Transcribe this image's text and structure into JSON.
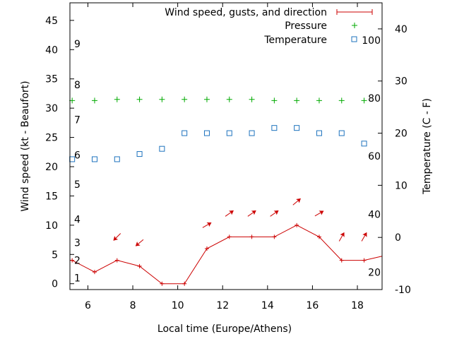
{
  "chart_data": {
    "type": "line",
    "xlabel": "Local time (Europe/Athens)",
    "ylabel_left": "Wind speed (kt - Beaufort)",
    "ylabel_right": "Temperature (C - F)",
    "xlim": [
      5.2,
      19.1
    ],
    "ylim_left": [
      -1,
      48
    ],
    "ylim_right": [
      -10,
      45
    ],
    "x_ticks": [
      6,
      8,
      10,
      12,
      14,
      16,
      18
    ],
    "y_left_ticks": [
      0,
      5,
      10,
      15,
      20,
      25,
      30,
      35,
      40,
      45
    ],
    "y_right_ticks": [
      -10,
      0,
      10,
      20,
      30,
      40
    ],
    "beaufort_labels": [
      {
        "label": "1",
        "kt": 1
      },
      {
        "label": "2",
        "kt": 4
      },
      {
        "label": "3",
        "kt": 7
      },
      {
        "label": "4",
        "kt": 11
      },
      {
        "label": "5",
        "kt": 17
      },
      {
        "label": "6",
        "kt": 22
      },
      {
        "label": "7",
        "kt": 28
      },
      {
        "label": "8",
        "kt": 34
      },
      {
        "label": "9",
        "kt": 41
      }
    ],
    "fahrenheit_labels": [
      {
        "label": "20",
        "celsius": -6.7
      },
      {
        "label": "40",
        "celsius": 4.4
      },
      {
        "label": "60",
        "celsius": 15.6
      },
      {
        "label": "80",
        "celsius": 26.7
      },
      {
        "label": "100",
        "celsius": 37.8
      }
    ],
    "series": [
      {
        "name": "Wind speed, gusts, and direction",
        "kind": "line",
        "color": "#cc0000",
        "x": [
          5.2,
          5.3,
          6.3,
          7.3,
          8.3,
          9.3,
          10.3,
          11.3,
          12.3,
          13.3,
          14.3,
          15.3,
          16.3,
          17.3,
          18.3,
          19.1
        ],
        "values": [
          4,
          4,
          2,
          4,
          3,
          0,
          0,
          6,
          8,
          8,
          8,
          10,
          8,
          4,
          4,
          4.7
        ]
      },
      {
        "name": "Pressure",
        "kind": "plus",
        "color": "#00aa00",
        "x": [
          5.3,
          6.3,
          7.3,
          8.3,
          9.3,
          10.3,
          11.3,
          12.3,
          13.3,
          14.3,
          15.3,
          16.3,
          17.3,
          18.3
        ],
        "values": [
          31.3,
          31.3,
          31.5,
          31.5,
          31.5,
          31.5,
          31.5,
          31.5,
          31.5,
          31.3,
          31.3,
          31.3,
          31.3,
          31.3
        ]
      },
      {
        "name": "Temperature",
        "kind": "square",
        "color": "#1e73be",
        "x": [
          5.3,
          6.3,
          7.3,
          8.3,
          9.3,
          10.3,
          11.3,
          12.3,
          13.3,
          14.3,
          15.3,
          16.3,
          17.3,
          18.3
        ],
        "values": [
          15,
          15,
          15,
          16,
          17,
          20,
          20,
          20,
          20,
          21,
          21,
          20,
          20,
          18
        ]
      }
    ],
    "wind_direction_arrows": [
      {
        "x": 7.3,
        "y": 8,
        "angle_deg": 135
      },
      {
        "x": 8.3,
        "y": 7,
        "angle_deg": 140
      },
      {
        "x": 11.3,
        "y": 10,
        "angle_deg": -30
      },
      {
        "x": 12.3,
        "y": 12,
        "angle_deg": -35
      },
      {
        "x": 13.3,
        "y": 12,
        "angle_deg": -35
      },
      {
        "x": 14.3,
        "y": 12,
        "angle_deg": -35
      },
      {
        "x": 15.3,
        "y": 14,
        "angle_deg": -40
      },
      {
        "x": 16.3,
        "y": 12,
        "angle_deg": -30
      },
      {
        "x": 17.3,
        "y": 8,
        "angle_deg": -60
      },
      {
        "x": 18.3,
        "y": 8,
        "angle_deg": -60
      }
    ]
  }
}
